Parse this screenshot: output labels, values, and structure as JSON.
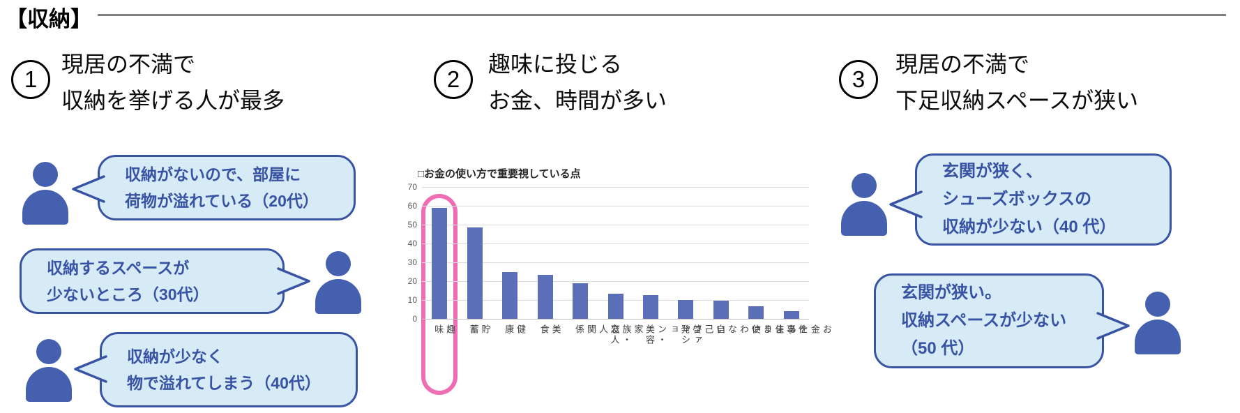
{
  "page": {
    "title": "【収納】"
  },
  "sections": [
    {
      "number": "1",
      "heading_lines": [
        "現居の不満で",
        "収納を挙げる人が最多"
      ],
      "bubbles": [
        {
          "side": "left",
          "lines": [
            "収納がないので、部屋に",
            "荷物が溢れている（20代）"
          ]
        },
        {
          "side": "right",
          "lines": [
            "収納するスペースが",
            "少ないところ（30代）"
          ]
        },
        {
          "side": "left",
          "lines": [
            "収納が少なく",
            "物で溢れてしまう（40代）"
          ]
        }
      ]
    },
    {
      "number": "2",
      "heading_lines": [
        "趣味に投じる",
        "お金、時間が多い"
      ]
    },
    {
      "number": "3",
      "heading_lines": [
        "現居の不満で",
        "下足収納スペースが狭い"
      ],
      "bubbles": [
        {
          "side": "left",
          "lines": [
            "玄関が狭く、",
            "シューズボックスの",
            "収納が少ない（40 代）"
          ]
        },
        {
          "side": "right",
          "lines": [
            "玄関が狭い。",
            "収納スペースが少ない",
            "（50 代）"
          ]
        }
      ]
    }
  ],
  "chart_data": {
    "type": "bar",
    "title": "□お金の使い方で重要視している点",
    "categories": [
      "趣味",
      "貯蓄",
      "健康",
      "美食",
      "友人関係",
      "家族・恋人",
      "ファッション・美容",
      "自己啓発",
      "お金をあまり使わない",
      "住まい",
      "仕事"
    ],
    "tick_labels": [
      "趣味",
      "貯蓄",
      "健康",
      "美食",
      "友人関係",
      "家族・恋人",
      "ファッション・美容",
      "自己啓発",
      "お金を\nあまり使わない",
      "住まい",
      "仕事"
    ],
    "values": [
      59,
      48.5,
      25,
      23.5,
      19,
      13.5,
      12.5,
      10,
      9.5,
      6.5,
      4
    ],
    "ylabel": "",
    "xlabel": "",
    "ylim": [
      0,
      70
    ],
    "yticks": [
      70,
      60,
      50,
      40,
      30,
      20,
      10,
      0
    ],
    "grid": true,
    "legend": "none",
    "highlight_category": "趣味",
    "highlight_color": "#ef6db4",
    "bar_color": "#5a6fb7"
  },
  "colors": {
    "person_blue": "#4560ae",
    "bubble_fill": "#d6ebf5",
    "bubble_border": "#3853a3",
    "bubble_text": "#3853a3",
    "bar": "#5a6fb7",
    "highlight": "#ef6db4",
    "rule": "#7f7f7f",
    "gridline": "#dcdcdc"
  }
}
